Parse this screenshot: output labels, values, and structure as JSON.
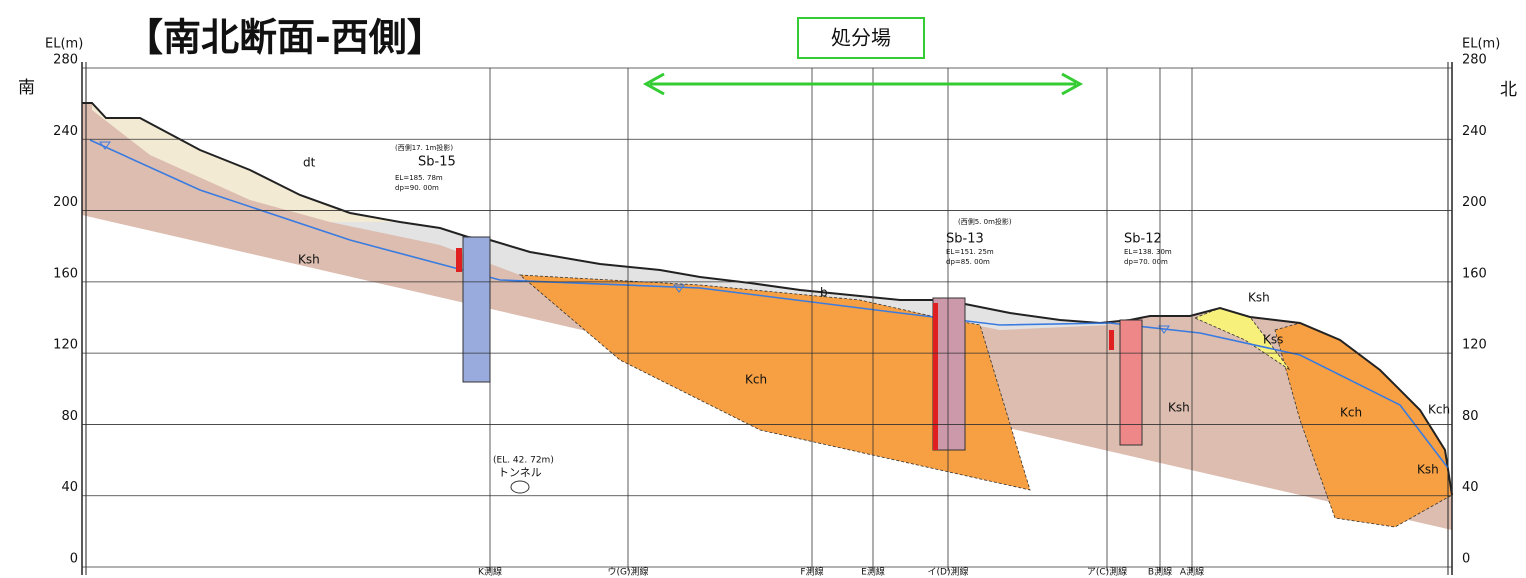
{
  "header": {
    "title": "【南北断面-西側】",
    "facility": "処分場"
  },
  "directions": {
    "south": "南",
    "north": "北"
  },
  "elevation_axis": {
    "label": "EL(m)",
    "lim": [
      0,
      280
    ],
    "ticks": [
      0,
      40,
      80,
      120,
      160,
      200,
      240,
      280
    ]
  },
  "survey_lines": [
    "K測線",
    "ウ(G)測線",
    "F測線",
    "E測線",
    "イ(D)測線",
    "ア(C)測線",
    "B測線",
    "A測線"
  ],
  "boreholes": [
    {
      "note": "(西側17. 1m投影)",
      "name": "Sb-15",
      "el": "EL=185. 78m",
      "dp": "dp=90. 00m"
    },
    {
      "note": "(西側5. 0m投影)",
      "name": "Sb-13",
      "el": "EL=151. 25m",
      "dp": "dp=85. 00m"
    },
    {
      "name": "Sb-12",
      "el": "EL=138. 30m",
      "dp": "dp=70. 00m"
    }
  ],
  "layers": [
    "dt",
    "Ksh",
    "b",
    "Kch",
    "Ksh",
    "Kss",
    "Ksh",
    "Kch",
    "Kch",
    "Ksh"
  ],
  "tunnel": {
    "elevation": "(EL. 42. 72m)",
    "label": "トンネル"
  }
}
